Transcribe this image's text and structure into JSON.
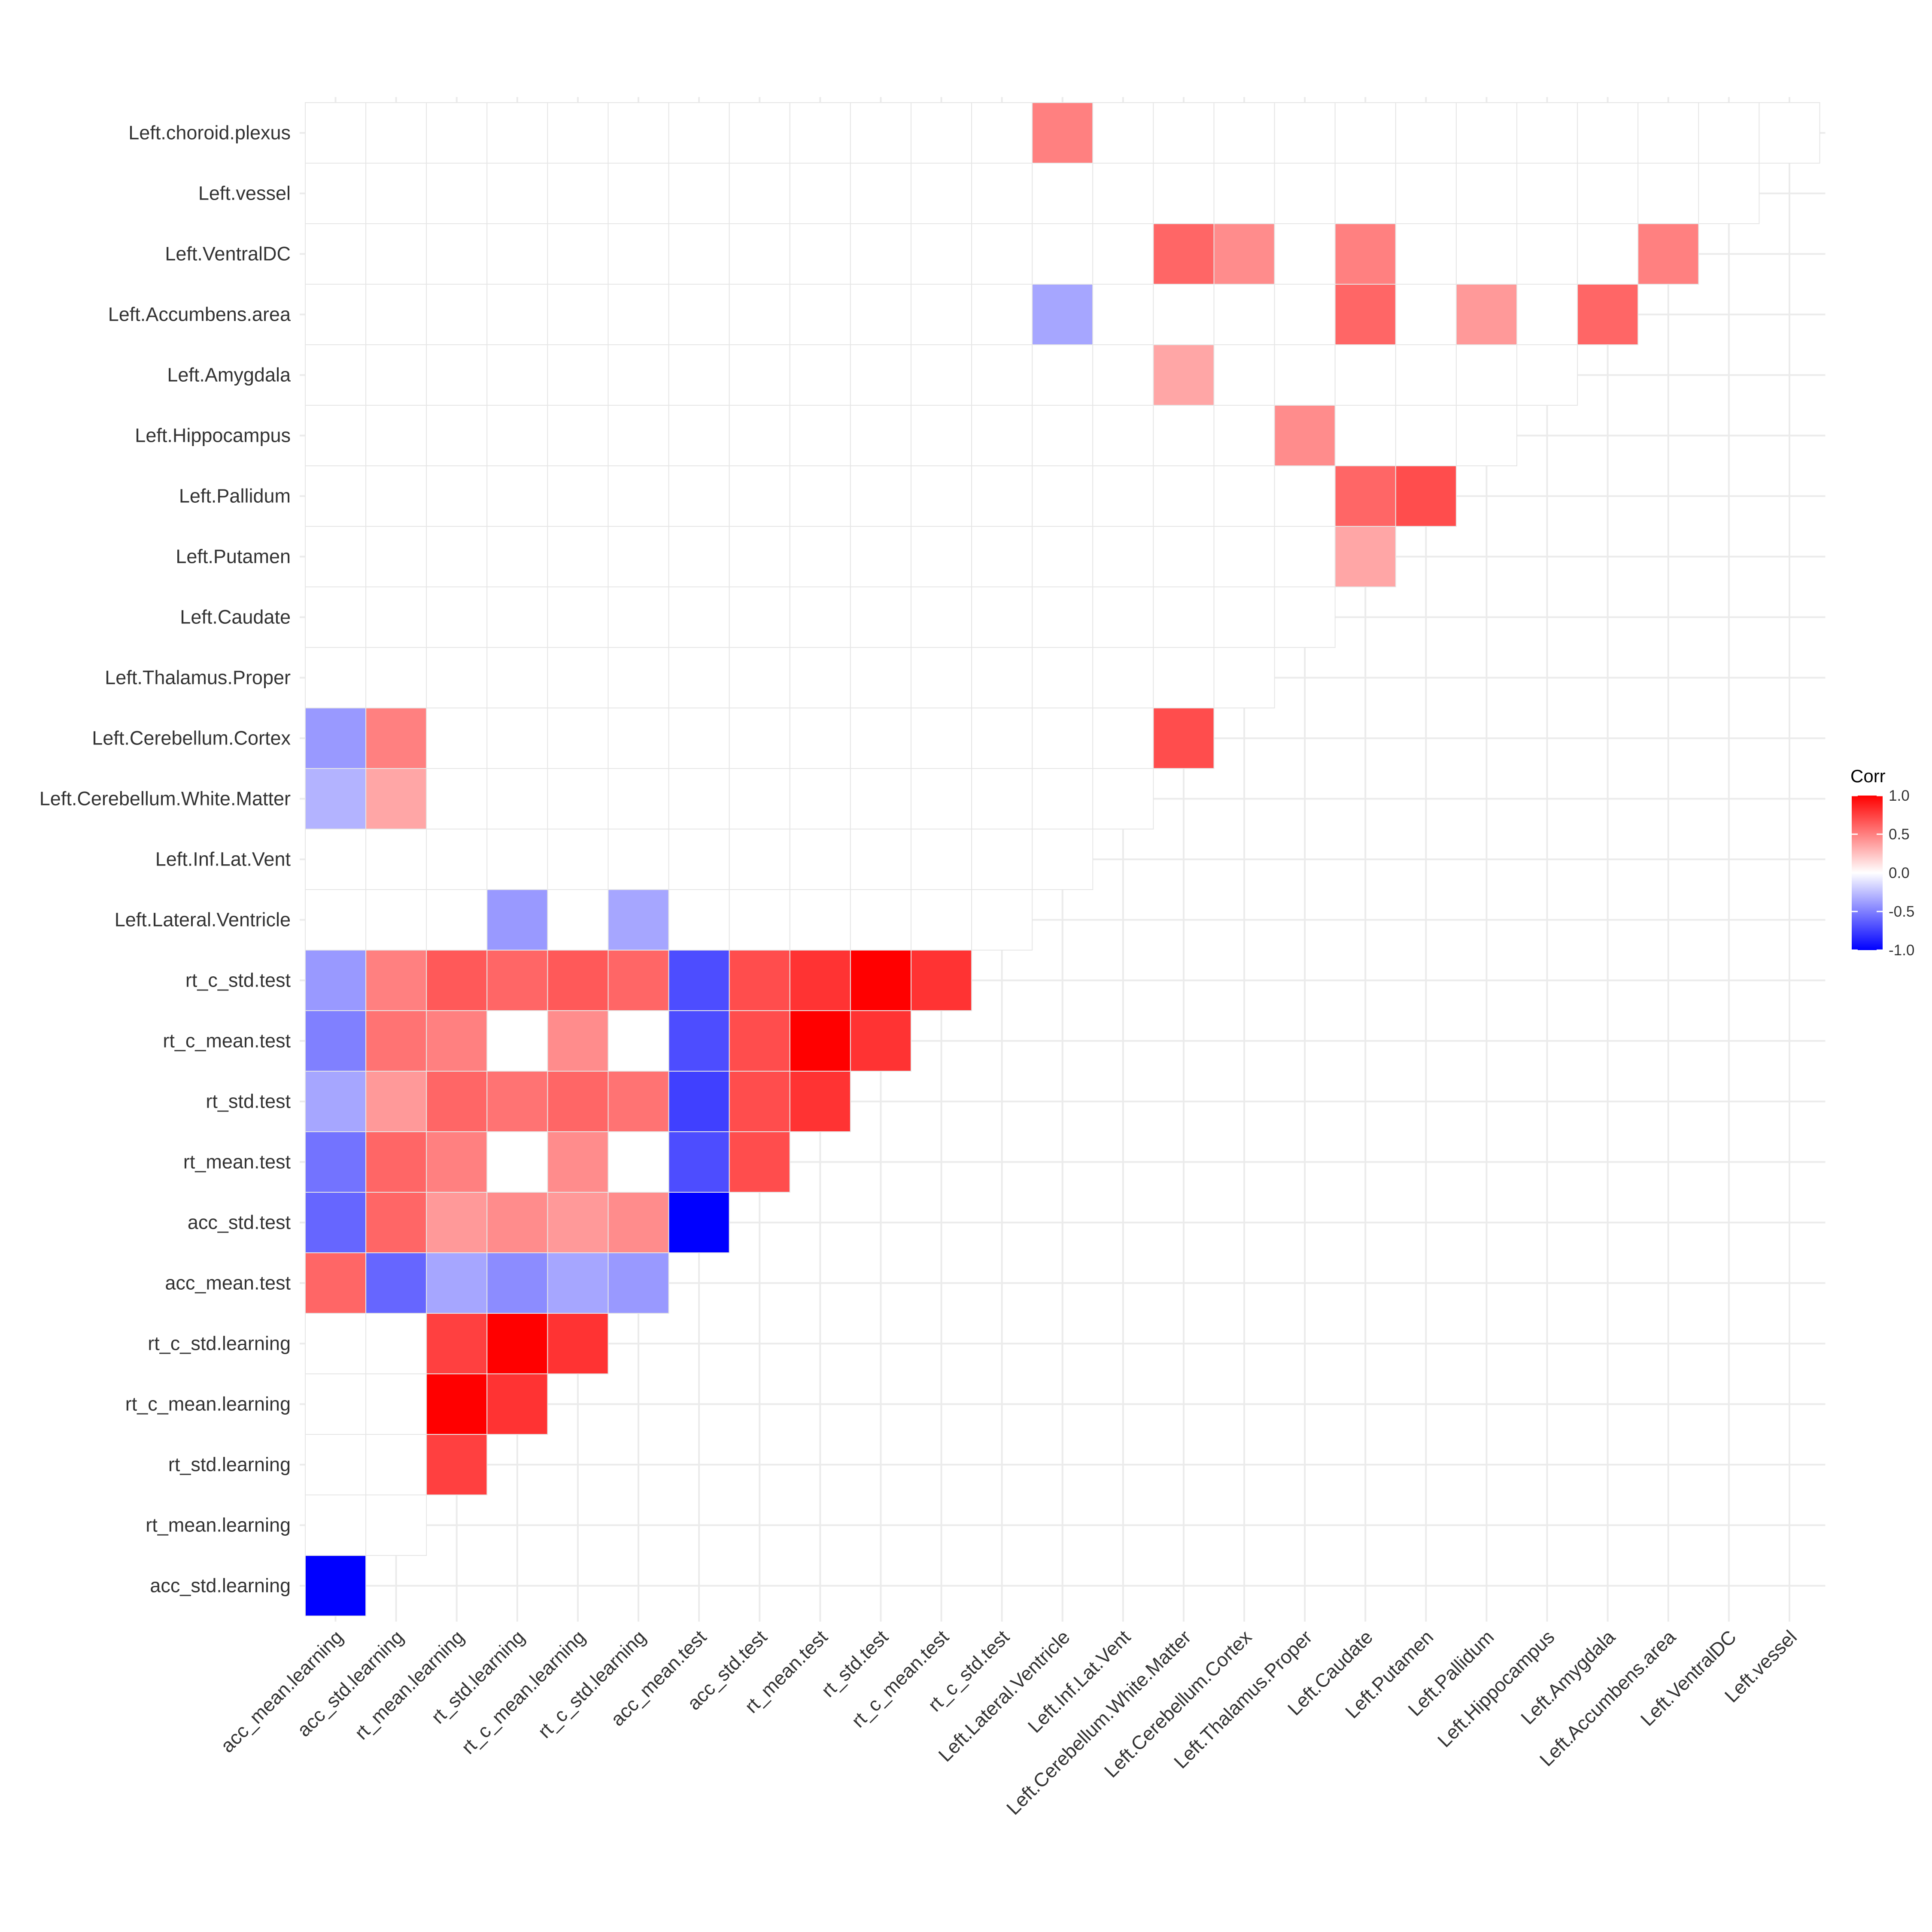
{
  "chart_data": {
    "type": "heatmap",
    "x_labels": [
      "acc_mean.learning",
      "acc_std.learning",
      "rt_mean.learning",
      "rt_std.learning",
      "rt_c_mean.learning",
      "rt_c_std.learning",
      "acc_mean.test",
      "acc_std.test",
      "rt_mean.test",
      "rt_std.test",
      "rt_c_mean.test",
      "rt_c_std.test",
      "Left.Lateral.Ventricle",
      "Left.Inf.Lat.Vent",
      "Left.Cerebellum.White.Matter",
      "Left.Cerebellum.Cortex",
      "Left.Thalamus.Proper",
      "Left.Caudate",
      "Left.Putamen",
      "Left.Pallidum",
      "Left.Hippocampus",
      "Left.Amygdala",
      "Left.Accumbens.area",
      "Left.VentralDC",
      "Left.vessel"
    ],
    "y_labels": [
      "acc_std.learning",
      "rt_mean.learning",
      "rt_std.learning",
      "rt_c_mean.learning",
      "rt_c_std.learning",
      "acc_mean.test",
      "acc_std.test",
      "rt_mean.test",
      "rt_std.test",
      "rt_c_mean.test",
      "rt_c_std.test",
      "Left.Lateral.Ventricle",
      "Left.Inf.Lat.Vent",
      "Left.Cerebellum.White.Matter",
      "Left.Cerebellum.Cortex",
      "Left.Thalamus.Proper",
      "Left.Caudate",
      "Left.Putamen",
      "Left.Pallidum",
      "Left.Hippocampus",
      "Left.Amygdala",
      "Left.Accumbens.area",
      "Left.VentralDC",
      "Left.vessel",
      "Left.choroid.plexus"
    ],
    "value_range": [
      -1,
      1
    ],
    "legend": {
      "title": "Corr",
      "ticks": [
        "1.0",
        "0.5",
        "0.0",
        "-0.5",
        "-1.0"
      ],
      "tick_values": [
        1,
        0.5,
        0,
        -0.5,
        -1
      ],
      "placement": "right"
    },
    "colors": {
      "low": "#0000FF",
      "mid": "#FFFFFF",
      "high": "#FF0000",
      "grid": "#EBEBEB"
    },
    "grid": true,
    "cells": [
      {
        "x": "acc_mean.learning",
        "y": "acc_std.learning",
        "value": -1.0
      },
      {
        "x": "rt_mean.learning",
        "y": "rt_std.learning",
        "value": 0.75
      },
      {
        "x": "rt_mean.learning",
        "y": "rt_c_mean.learning",
        "value": 1.0
      },
      {
        "x": "rt_std.learning",
        "y": "rt_c_mean.learning",
        "value": 0.8
      },
      {
        "x": "rt_mean.learning",
        "y": "rt_c_std.learning",
        "value": 0.75
      },
      {
        "x": "rt_std.learning",
        "y": "rt_c_std.learning",
        "value": 1.0
      },
      {
        "x": "rt_c_mean.learning",
        "y": "rt_c_std.learning",
        "value": 0.8
      },
      {
        "x": "acc_mean.learning",
        "y": "acc_mean.test",
        "value": 0.6
      },
      {
        "x": "acc_std.learning",
        "y": "acc_mean.test",
        "value": -0.6
      },
      {
        "x": "rt_mean.learning",
        "y": "acc_mean.test",
        "value": -0.35
      },
      {
        "x": "rt_std.learning",
        "y": "acc_mean.test",
        "value": -0.45
      },
      {
        "x": "rt_c_mean.learning",
        "y": "acc_mean.test",
        "value": -0.35
      },
      {
        "x": "rt_c_std.learning",
        "y": "acc_mean.test",
        "value": -0.4
      },
      {
        "x": "acc_mean.learning",
        "y": "acc_std.test",
        "value": -0.6
      },
      {
        "x": "acc_std.learning",
        "y": "acc_std.test",
        "value": 0.6
      },
      {
        "x": "rt_mean.learning",
        "y": "acc_std.test",
        "value": 0.4
      },
      {
        "x": "rt_std.learning",
        "y": "acc_std.test",
        "value": 0.45
      },
      {
        "x": "rt_c_mean.learning",
        "y": "acc_std.test",
        "value": 0.4
      },
      {
        "x": "rt_c_std.learning",
        "y": "acc_std.test",
        "value": 0.45
      },
      {
        "x": "acc_mean.test",
        "y": "acc_std.test",
        "value": -1.0
      },
      {
        "x": "acc_mean.learning",
        "y": "rt_mean.test",
        "value": -0.55
      },
      {
        "x": "acc_std.learning",
        "y": "rt_mean.test",
        "value": 0.6
      },
      {
        "x": "rt_mean.learning",
        "y": "rt_mean.test",
        "value": 0.5
      },
      {
        "x": "rt_c_mean.learning",
        "y": "rt_mean.test",
        "value": 0.45
      },
      {
        "x": "acc_mean.test",
        "y": "rt_mean.test",
        "value": -0.7
      },
      {
        "x": "acc_std.test",
        "y": "rt_mean.test",
        "value": 0.7
      },
      {
        "x": "acc_mean.learning",
        "y": "rt_std.test",
        "value": -0.35
      },
      {
        "x": "acc_std.learning",
        "y": "rt_std.test",
        "value": 0.4
      },
      {
        "x": "rt_mean.learning",
        "y": "rt_std.test",
        "value": 0.6
      },
      {
        "x": "rt_std.learning",
        "y": "rt_std.test",
        "value": 0.55
      },
      {
        "x": "rt_c_mean.learning",
        "y": "rt_std.test",
        "value": 0.6
      },
      {
        "x": "rt_c_std.learning",
        "y": "rt_std.test",
        "value": 0.55
      },
      {
        "x": "acc_mean.test",
        "y": "rt_std.test",
        "value": -0.75
      },
      {
        "x": "acc_std.test",
        "y": "rt_std.test",
        "value": 0.7
      },
      {
        "x": "rt_mean.test",
        "y": "rt_std.test",
        "value": 0.8
      },
      {
        "x": "acc_mean.learning",
        "y": "rt_c_mean.test",
        "value": -0.5
      },
      {
        "x": "acc_std.learning",
        "y": "rt_c_mean.test",
        "value": 0.55
      },
      {
        "x": "rt_mean.learning",
        "y": "rt_c_mean.test",
        "value": 0.5
      },
      {
        "x": "rt_c_mean.learning",
        "y": "rt_c_mean.test",
        "value": 0.45
      },
      {
        "x": "acc_mean.test",
        "y": "rt_c_mean.test",
        "value": -0.7
      },
      {
        "x": "acc_std.test",
        "y": "rt_c_mean.test",
        "value": 0.7
      },
      {
        "x": "rt_mean.test",
        "y": "rt_c_mean.test",
        "value": 1.0
      },
      {
        "x": "rt_std.test",
        "y": "rt_c_mean.test",
        "value": 0.8
      },
      {
        "x": "acc_mean.learning",
        "y": "rt_c_std.test",
        "value": -0.4
      },
      {
        "x": "acc_std.learning",
        "y": "rt_c_std.test",
        "value": 0.5
      },
      {
        "x": "rt_mean.learning",
        "y": "rt_c_std.test",
        "value": 0.65
      },
      {
        "x": "rt_std.learning",
        "y": "rt_c_std.test",
        "value": 0.6
      },
      {
        "x": "rt_c_mean.learning",
        "y": "rt_c_std.test",
        "value": 0.65
      },
      {
        "x": "rt_c_std.learning",
        "y": "rt_c_std.test",
        "value": 0.6
      },
      {
        "x": "acc_mean.test",
        "y": "rt_c_std.test",
        "value": -0.7
      },
      {
        "x": "acc_std.test",
        "y": "rt_c_std.test",
        "value": 0.7
      },
      {
        "x": "rt_mean.test",
        "y": "rt_c_std.test",
        "value": 0.8
      },
      {
        "x": "rt_std.test",
        "y": "rt_c_std.test",
        "value": 1.0
      },
      {
        "x": "rt_c_mean.test",
        "y": "rt_c_std.test",
        "value": 0.8
      },
      {
        "x": "rt_std.learning",
        "y": "Left.Lateral.Ventricle",
        "value": -0.4
      },
      {
        "x": "rt_c_std.learning",
        "y": "Left.Lateral.Ventricle",
        "value": -0.35
      },
      {
        "x": "acc_mean.learning",
        "y": "Left.Cerebellum.White.Matter",
        "value": -0.3
      },
      {
        "x": "acc_std.learning",
        "y": "Left.Cerebellum.White.Matter",
        "value": 0.35
      },
      {
        "x": "acc_mean.learning",
        "y": "Left.Cerebellum.Cortex",
        "value": -0.4
      },
      {
        "x": "acc_std.learning",
        "y": "Left.Cerebellum.Cortex",
        "value": 0.5
      },
      {
        "x": "Left.Cerebellum.White.Matter",
        "y": "Left.Cerebellum.Cortex",
        "value": 0.7
      },
      {
        "x": "Left.Caudate",
        "y": "Left.Putamen",
        "value": 0.35
      },
      {
        "x": "Left.Caudate",
        "y": "Left.Pallidum",
        "value": 0.6
      },
      {
        "x": "Left.Putamen",
        "y": "Left.Pallidum",
        "value": 0.7
      },
      {
        "x": "Left.Thalamus.Proper",
        "y": "Left.Hippocampus",
        "value": 0.45
      },
      {
        "x": "Left.Cerebellum.White.Matter",
        "y": "Left.Amygdala",
        "value": 0.35
      },
      {
        "x": "Left.Lateral.Ventricle",
        "y": "Left.Accumbens.area",
        "value": -0.35
      },
      {
        "x": "Left.Caudate",
        "y": "Left.Accumbens.area",
        "value": 0.6
      },
      {
        "x": "Left.Pallidum",
        "y": "Left.Accumbens.area",
        "value": 0.4
      },
      {
        "x": "Left.Amygdala",
        "y": "Left.Accumbens.area",
        "value": 0.6
      },
      {
        "x": "Left.Cerebellum.White.Matter",
        "y": "Left.VentralDC",
        "value": 0.6
      },
      {
        "x": "Left.Cerebellum.Cortex",
        "y": "Left.VentralDC",
        "value": 0.45
      },
      {
        "x": "Left.Caudate",
        "y": "Left.VentralDC",
        "value": 0.5
      },
      {
        "x": "Left.Accumbens.area",
        "y": "Left.VentralDC",
        "value": 0.5
      },
      {
        "x": "Left.Lateral.Ventricle",
        "y": "Left.choroid.plexus",
        "value": 0.5
      }
    ]
  }
}
